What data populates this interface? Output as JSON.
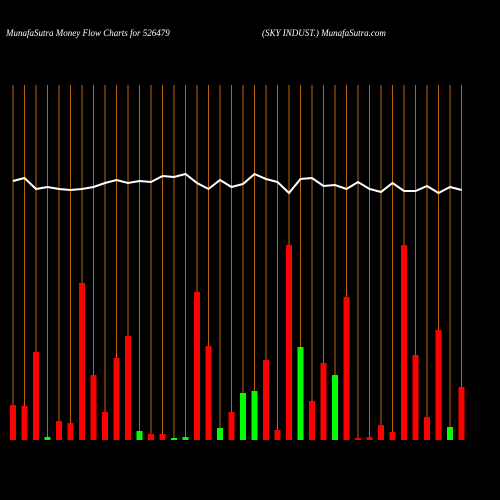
{
  "chart_data": {
    "type": "bar",
    "title": "MunafaSutra  Money Flow  Charts for 526479",
    "subtitle": "(SKY INDUST.) MunafaSutra.com",
    "categories": [
      null,
      null,
      null,
      null,
      null,
      null,
      null,
      null,
      null,
      null,
      null,
      null,
      null,
      null,
      null,
      null,
      null,
      null,
      null,
      null,
      null,
      null,
      null,
      null,
      null,
      null,
      null,
      null,
      null,
      null,
      null,
      null,
      null,
      null,
      null,
      null,
      null,
      null,
      null,
      null
    ],
    "values": [
      35,
      34,
      88,
      3,
      19,
      17,
      157,
      65,
      28,
      82,
      104,
      9,
      6,
      6,
      2,
      3,
      148,
      94,
      12,
      28,
      47,
      49,
      80,
      10,
      195,
      93,
      39,
      77,
      65,
      143,
      2,
      3,
      15,
      8,
      195,
      85,
      23,
      110,
      13,
      53
    ],
    "bar_colors": [
      "#ff0000",
      "#ff0000",
      "#ff0000",
      "#00ff00",
      "#ff0000",
      "#ff0000",
      "#ff0000",
      "#ff0000",
      "#ff0000",
      "#ff0000",
      "#ff0000",
      "#00ff00",
      "#ff0000",
      "#ff0000",
      "#00ff00",
      "#00ff00",
      "#ff0000",
      "#ff0000",
      "#00ff00",
      "#ff0000",
      "#00ff00",
      "#00ff00",
      "#ff0000",
      "#ff0000",
      "#ff0000",
      "#00ff00",
      "#ff0000",
      "#ff0000",
      "#00ff00",
      "#ff0000",
      "#ff0000",
      "#ff0000",
      "#ff0000",
      "#ff0000",
      "#ff0000",
      "#ff0000",
      "#ff0000",
      "#ff0000",
      "#00ff00",
      "#ff0000"
    ],
    "line": {
      "color": "#ffffff",
      "values": [
        259,
        262,
        251,
        253,
        251,
        250,
        251,
        253,
        257,
        260,
        257,
        259,
        258,
        264,
        263,
        266,
        257,
        251,
        260,
        253,
        256,
        266,
        261,
        258,
        247,
        261,
        262,
        254,
        255,
        251,
        258,
        251,
        248,
        257,
        249,
        249,
        254,
        247,
        253,
        250
      ]
    },
    "ylim": [
      0,
      440
    ],
    "grid_color": "#b8650f"
  }
}
